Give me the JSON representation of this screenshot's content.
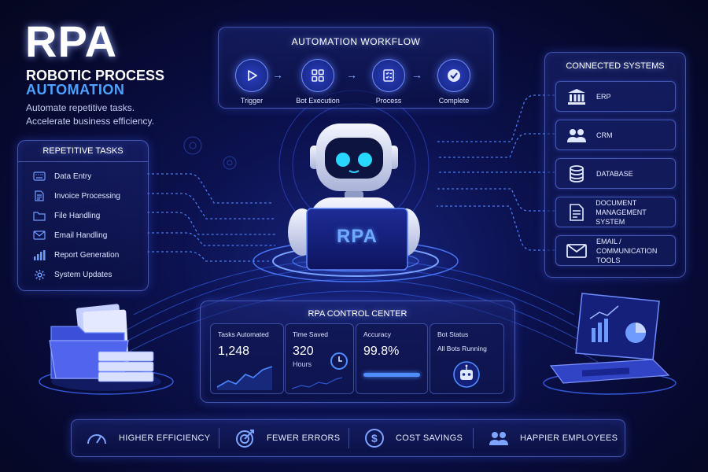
{
  "hero": {
    "title": "RPA",
    "subtitle_line1": "ROBOTIC PROCESS",
    "subtitle_line2": "AUTOMATION",
    "tagline_line1": "Automate repetitive tasks.",
    "tagline_line2": "Accelerate business efficiency."
  },
  "workflow": {
    "title": "AUTOMATION WORKFLOW",
    "steps": [
      {
        "label": "Trigger",
        "icon": "play-icon"
      },
      {
        "label": "Bot Execution",
        "icon": "grid-icon"
      },
      {
        "label": "Process",
        "icon": "checklist-icon"
      },
      {
        "label": "Complete",
        "icon": "check-circle-icon"
      }
    ]
  },
  "tasks": {
    "title": "REPETITIVE TASKS",
    "items": [
      {
        "label": "Data Entry",
        "icon": "keyboard-icon"
      },
      {
        "label": "Invoice Processing",
        "icon": "document-icon"
      },
      {
        "label": "File Handling",
        "icon": "folder-icon"
      },
      {
        "label": "Email Handling",
        "icon": "mail-icon"
      },
      {
        "label": "Report Generation",
        "icon": "bar-chart-icon"
      },
      {
        "label": "System Updates",
        "icon": "gear-icon"
      }
    ]
  },
  "systems": {
    "title": "CONNECTED SYSTEMS",
    "items": [
      {
        "label": "ERP",
        "label2": "",
        "icon": "bank-icon"
      },
      {
        "label": "CRM",
        "label2": "",
        "icon": "users-icon"
      },
      {
        "label": "DATABASE",
        "label2": "",
        "icon": "database-icon"
      },
      {
        "label": "DOCUMENT",
        "label2": "MANAGEMENT SYSTEM",
        "icon": "document-icon"
      },
      {
        "label": "EMAIL / COMMUNICATION",
        "label2": "TOOLS",
        "icon": "mail-icon"
      }
    ]
  },
  "robot": {
    "laptop_label": "RPA"
  },
  "control_center": {
    "title": "RPA CONTROL CENTER",
    "tasks_automated": {
      "label": "Tasks Automated",
      "value": "1,248"
    },
    "time_saved": {
      "label": "Time Saved",
      "value": "320",
      "unit": "Hours"
    },
    "accuracy": {
      "label": "Accuracy",
      "value": "99.8%",
      "fill": 0.998
    },
    "bot_status": {
      "label": "Bot Status",
      "value": "All Bots Running"
    }
  },
  "benefits": [
    {
      "label": "HIGHER EFFICIENCY",
      "icon": "speedometer-icon"
    },
    {
      "label": "FEWER ERRORS",
      "icon": "target-icon"
    },
    {
      "label": "COST SAVINGS",
      "icon": "dollar-icon"
    },
    {
      "label": "HAPPIER EMPLOYEES",
      "icon": "users-icon"
    }
  ],
  "colors": {
    "accent": "#4ea1ff",
    "panel_border": "#6e8cff",
    "background": "#0a0f45"
  }
}
